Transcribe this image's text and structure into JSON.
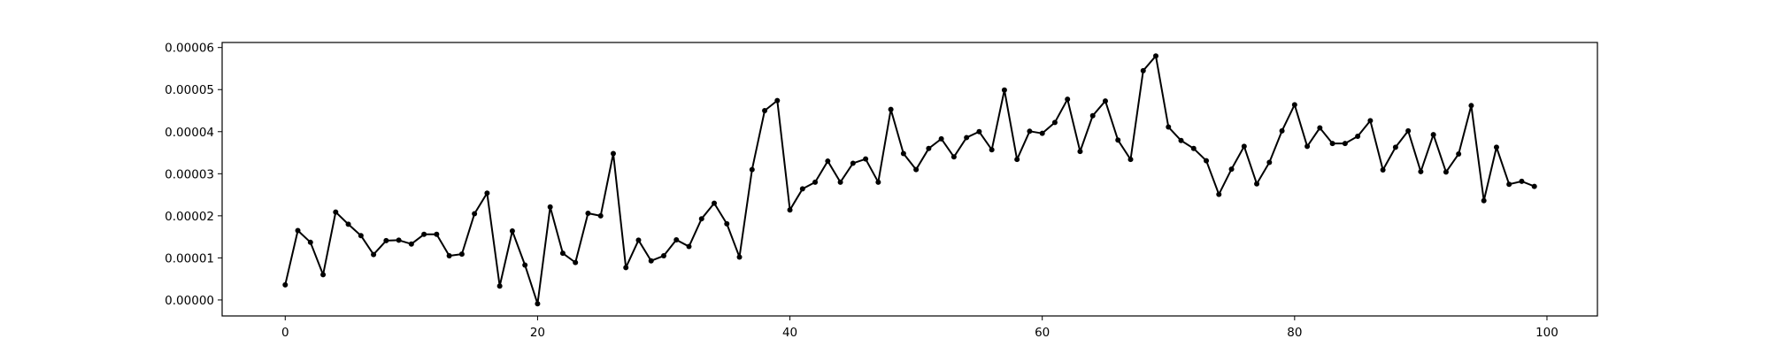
{
  "chart_data": {
    "type": "line",
    "title": "",
    "xlabel": "",
    "ylabel": "",
    "xlim": [
      -5,
      104
    ],
    "ylim": [
      -3.8e-06,
      6.12e-05
    ],
    "x_ticks": [
      0,
      20,
      40,
      60,
      80,
      100
    ],
    "x_tick_labels": [
      "0",
      "20",
      "40",
      "60",
      "80",
      "100"
    ],
    "y_ticks": [
      0,
      1e-05,
      2e-05,
      3e-05,
      4e-05,
      5e-05,
      6e-05
    ],
    "y_tick_labels": [
      "0.00000",
      "0.00001",
      "0.00002",
      "0.00003",
      "0.00004",
      "0.00005",
      "0.00006"
    ],
    "grid": false,
    "legend": "none",
    "series_color": "#000000",
    "series": [
      {
        "x": [
          0,
          1,
          2,
          3,
          4,
          5,
          6,
          7,
          8,
          9,
          10,
          11,
          12,
          13,
          14,
          15,
          16,
          17,
          18,
          19,
          20,
          21,
          22,
          23,
          24,
          25,
          26,
          27,
          28,
          29,
          30,
          31,
          32,
          33,
          34,
          35,
          36,
          37,
          38,
          39,
          40,
          41,
          42,
          43,
          44,
          45,
          46,
          47,
          48,
          49,
          50,
          51,
          52,
          53,
          54,
          55,
          56,
          57,
          58,
          59,
          60,
          61,
          62,
          63,
          64,
          65,
          66,
          67,
          68,
          69,
          70,
          71,
          72,
          73,
          74,
          75,
          76,
          77,
          78,
          79,
          80,
          81,
          82,
          83,
          84,
          85,
          86,
          87,
          88,
          89,
          90,
          91,
          92,
          93,
          94,
          95,
          96,
          97,
          98,
          99
        ],
        "values": [
          3.6e-06,
          1.65e-05,
          1.37e-05,
          6e-06,
          2.09e-05,
          1.8e-05,
          1.53e-05,
          1.08e-05,
          1.41e-05,
          1.42e-05,
          1.33e-05,
          1.56e-05,
          1.56e-05,
          1.05e-05,
          1.09e-05,
          2.05e-05,
          2.54e-05,
          3.3e-06,
          1.64e-05,
          8.3e-06,
          -9e-07,
          2.21e-05,
          1.11e-05,
          8.9e-06,
          2.06e-05,
          2e-05,
          3.48e-05,
          7.7e-06,
          1.42e-05,
          9.3e-06,
          1.05e-05,
          1.43e-05,
          1.27e-05,
          1.93e-05,
          2.3e-05,
          1.81e-05,
          1.02e-05,
          3.1e-05,
          4.5e-05,
          4.74e-05,
          2.14e-05,
          2.64e-05,
          2.8e-05,
          3.3e-05,
          2.8e-05,
          3.25e-05,
          3.35e-05,
          2.8e-05,
          4.53e-05,
          3.48e-05,
          3.1e-05,
          3.6e-05,
          3.83e-05,
          3.4e-05,
          3.86e-05,
          4e-05,
          3.57e-05,
          4.99e-05,
          3.34e-05,
          4.01e-05,
          3.96e-05,
          4.22e-05,
          4.77e-05,
          3.53e-05,
          4.38e-05,
          4.73e-05,
          3.8e-05,
          3.34e-05,
          5.45e-05,
          5.8e-05,
          4.11e-05,
          3.79e-05,
          3.6e-05,
          3.31e-05,
          2.51e-05,
          3.11e-05,
          3.65e-05,
          2.76e-05,
          3.27e-05,
          4.02e-05,
          4.64e-05,
          3.65e-05,
          4.09e-05,
          3.72e-05,
          3.72e-05,
          3.89e-05,
          4.26e-05,
          3.09e-05,
          3.63e-05,
          4.02e-05,
          3.05e-05,
          3.93e-05,
          3.04e-05,
          3.47e-05,
          4.62e-05,
          2.36e-05,
          3.63e-05,
          2.75e-05,
          2.82e-05,
          2.7e-05
        ]
      }
    ]
  }
}
